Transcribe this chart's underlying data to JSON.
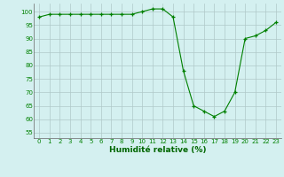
{
  "x": [
    0,
    1,
    2,
    3,
    4,
    5,
    6,
    7,
    8,
    9,
    10,
    11,
    12,
    13,
    14,
    15,
    16,
    17,
    18,
    19,
    20,
    21,
    22,
    23
  ],
  "y": [
    98,
    99,
    99,
    99,
    99,
    99,
    99,
    99,
    99,
    99,
    100,
    101,
    101,
    98,
    78,
    65,
    63,
    61,
    63,
    70,
    90,
    91,
    93,
    96
  ],
  "line_color": "#008000",
  "marker": "+",
  "marker_color": "#008000",
  "background_color": "#d4f0f0",
  "grid_color": "#b0c8c8",
  "xlabel": "Humidité relative (%)",
  "xlabel_color": "#006600",
  "ylabel_ticks": [
    55,
    60,
    65,
    70,
    75,
    80,
    85,
    90,
    95,
    100
  ],
  "xlim": [
    -0.5,
    23.5
  ],
  "ylim": [
    53,
    103
  ],
  "xtick_labels": [
    "0",
    "1",
    "2",
    "3",
    "4",
    "5",
    "6",
    "7",
    "8",
    "9",
    "10",
    "11",
    "12",
    "13",
    "14",
    "15",
    "16",
    "17",
    "18",
    "19",
    "20",
    "21",
    "22",
    "23"
  ]
}
